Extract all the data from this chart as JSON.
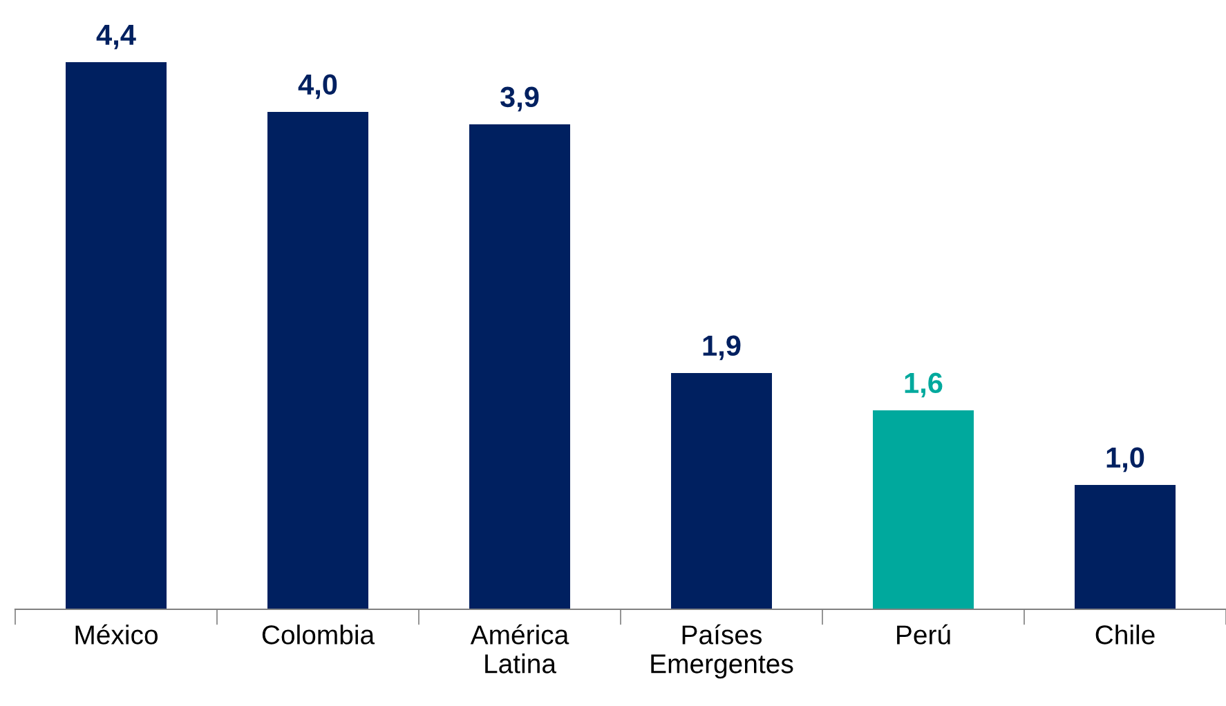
{
  "chart_data": {
    "type": "bar",
    "categories": [
      "México",
      "Colombia",
      "América\nLatina",
      "Países\nEmergentes",
      "Perú",
      "Chile"
    ],
    "values": [
      4.4,
      4.0,
      3.9,
      1.9,
      1.6,
      1.0
    ],
    "colors": [
      "#002060",
      "#002060",
      "#002060",
      "#002060",
      "#00a99d",
      "#002060"
    ],
    "value_labels": [
      "4,4",
      "4,0",
      "3,9",
      "1,9",
      "1,6",
      "1,0"
    ],
    "grid": false,
    "legend": false
  }
}
